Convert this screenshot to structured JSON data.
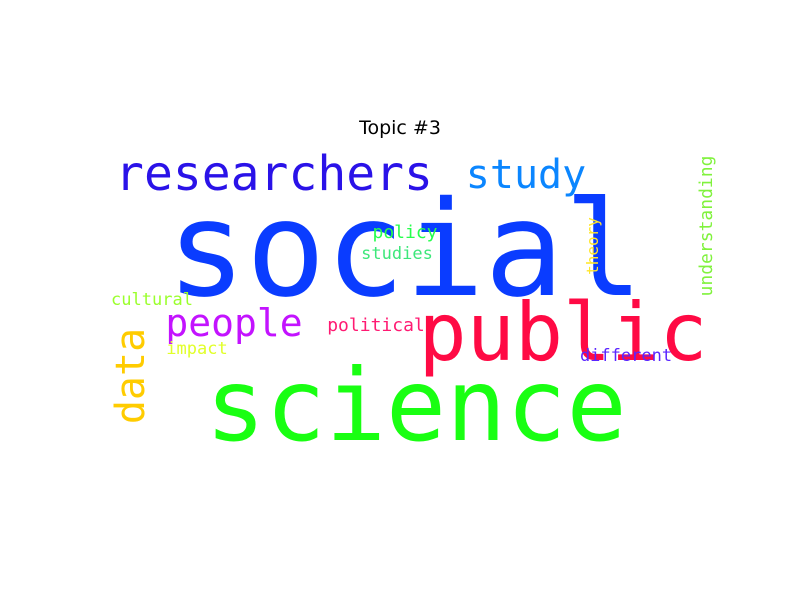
{
  "chart_data": {
    "type": "wordcloud",
    "title": "Topic #3",
    "words": [
      {
        "text": "social",
        "color": "#0a3cff"
      },
      {
        "text": "science",
        "color": "#19ff12"
      },
      {
        "text": "public",
        "color": "#ff0a44"
      },
      {
        "text": "researchers",
        "color": "#2a12e8"
      },
      {
        "text": "study",
        "color": "#0b86ff"
      },
      {
        "text": "people",
        "color": "#c313ff"
      },
      {
        "text": "data",
        "color": "#ffcc00"
      },
      {
        "text": "political",
        "color": "#ff1a72"
      },
      {
        "text": "policy",
        "color": "#25ff4c"
      },
      {
        "text": "studies",
        "color": "#3de77a"
      },
      {
        "text": "cultural",
        "color": "#9bff2d"
      },
      {
        "text": "impact",
        "color": "#e1ff29"
      },
      {
        "text": "different",
        "color": "#5a25ff"
      },
      {
        "text": "theory",
        "color": "#ffe62c"
      },
      {
        "text": "understanding",
        "color": "#80f23d"
      }
    ]
  }
}
